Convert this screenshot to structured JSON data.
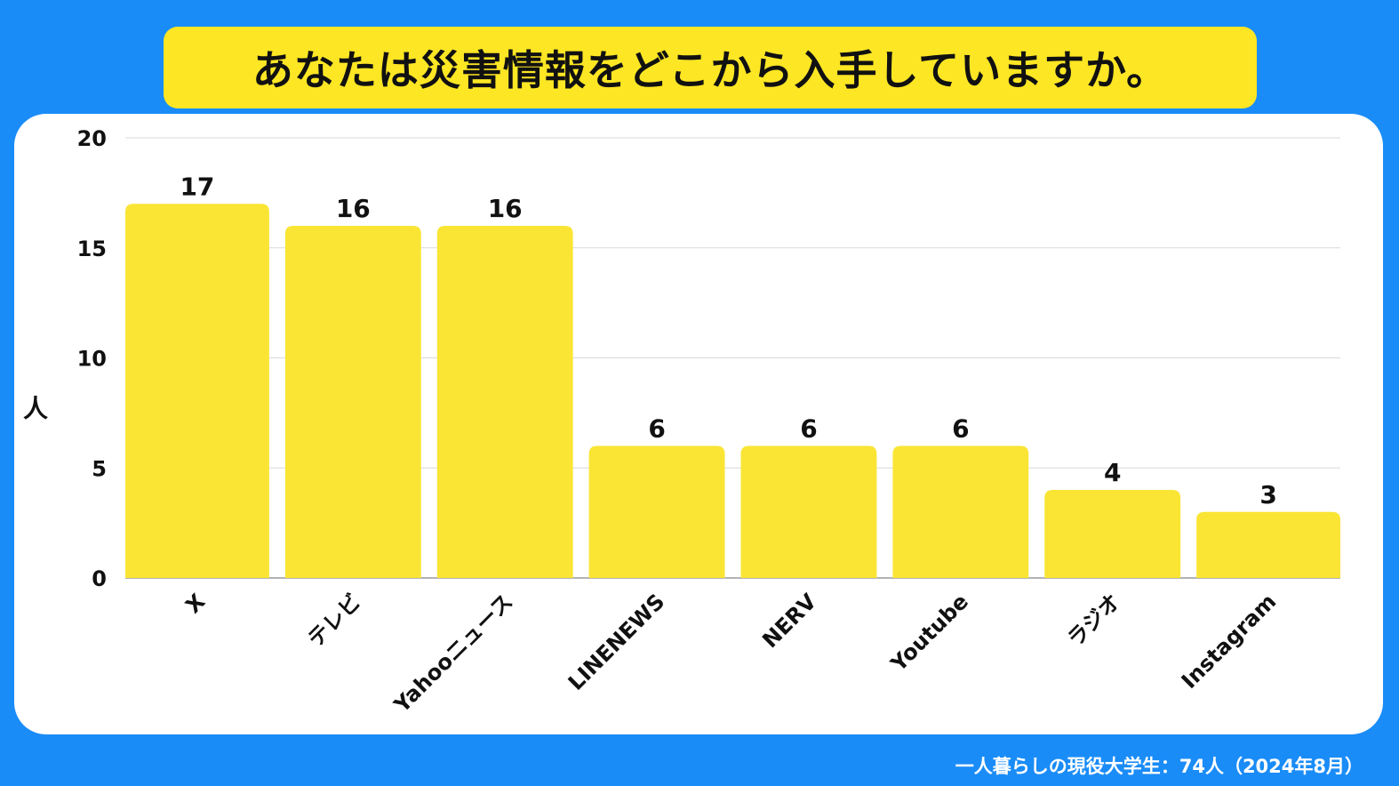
{
  "title": "あなたは災害情報をどこから入手していますか。",
  "footnote": "一人暮らしの現役大学生：74人（2024年8月）",
  "colors": {
    "background": "#1a8cf7",
    "title_box": "#fde624",
    "bar": "#fae535",
    "grid": "#d9d9d9",
    "text": "#111111"
  },
  "chart_data": {
    "type": "bar",
    "ylabel": "人",
    "xlabel": "",
    "ylim": [
      0,
      20
    ],
    "yticks": [
      0,
      5,
      10,
      15,
      20
    ],
    "grid": true,
    "categories": [
      "X",
      "テレビ",
      "Yahooニュース",
      "LINENEWS",
      "NERV",
      "Youtube",
      "ラジオ",
      "Instagram"
    ],
    "values": [
      17,
      16,
      16,
      6,
      6,
      6,
      4,
      3
    ],
    "data_labels": [
      "17",
      "16",
      "16",
      "6",
      "6",
      "6",
      "4",
      "3"
    ]
  }
}
